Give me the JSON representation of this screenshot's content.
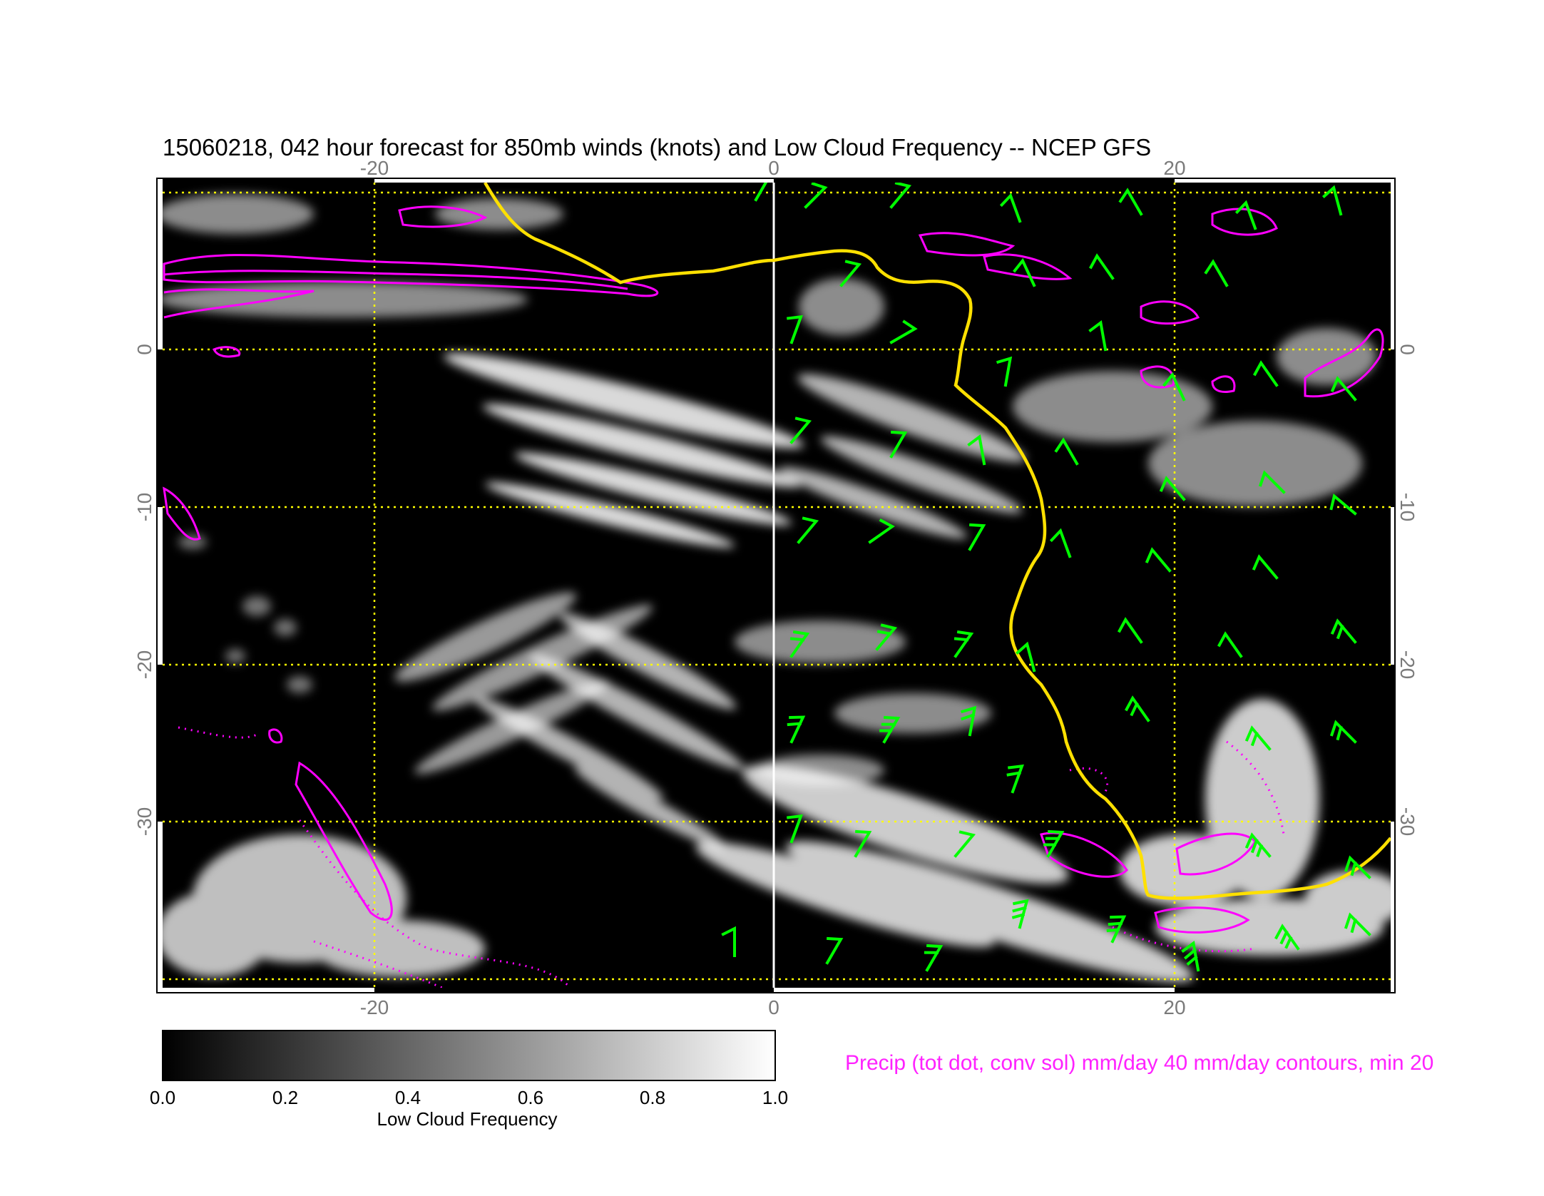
{
  "title": "15060218, 042 hour forecast for 850mb winds (knots) and Low Cloud Frequency -- NCEP GFS",
  "map": {
    "lon_ticks": [
      "-20",
      "0",
      "20"
    ],
    "lat_ticks": [
      "0",
      "-10",
      "-20",
      "-30"
    ],
    "lon_range": [
      -30,
      31
    ],
    "lat_range": [
      -40,
      10
    ],
    "graticule_color": "#ffff00",
    "coastline_color": "#ffe000",
    "wind_barb_color": "#00ff00",
    "precip_contour_color": "#ff00ff",
    "meridian_0_color": "#ffffff"
  },
  "colorbar": {
    "label": "Low Cloud Frequency",
    "ticks": [
      "0.0",
      "0.2",
      "0.4",
      "0.6",
      "0.8",
      "1.0"
    ],
    "range": [
      0.0,
      1.0
    ],
    "colors": [
      "#000000",
      "#ffffff"
    ]
  },
  "precip_note": "Precip (tot dot, conv sol) mm/day 40 mm/day contours, min 20"
}
